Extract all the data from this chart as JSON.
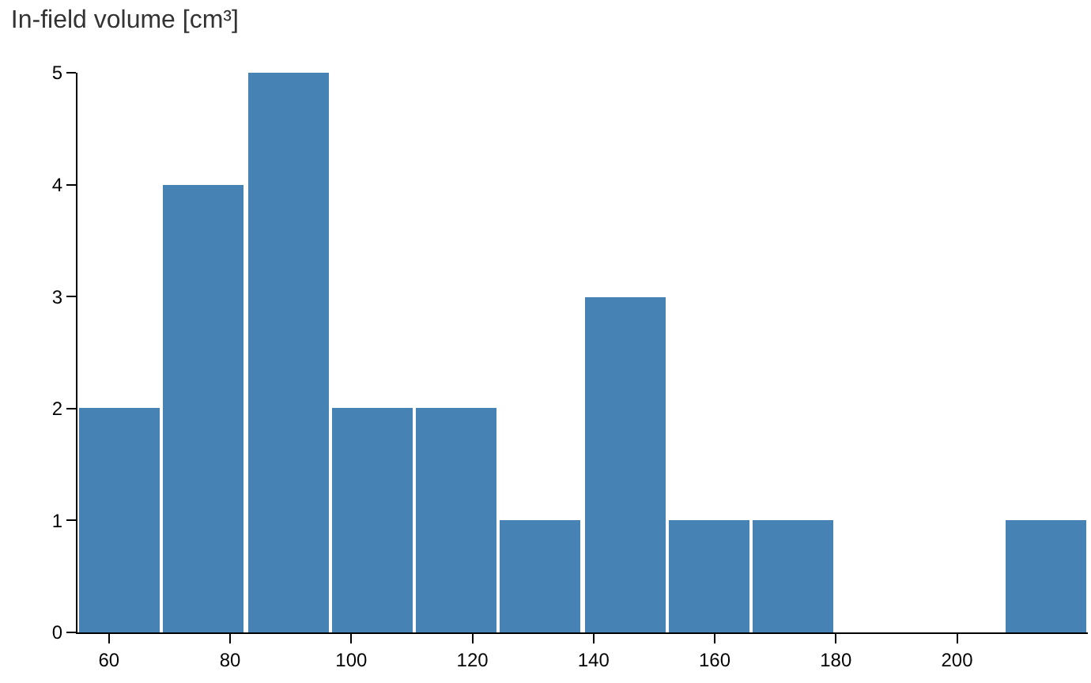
{
  "chart_data": {
    "type": "histogram",
    "title": "In-field volume [cm³]",
    "bins": [
      54.8,
      68.7,
      82.6,
      96.5,
      110.4,
      124.3,
      138.2,
      152.1,
      166.0,
      179.9,
      193.8,
      207.7,
      221.6
    ],
    "values": [
      2,
      4,
      5,
      2,
      2,
      1,
      3,
      1,
      1,
      0,
      0,
      1
    ],
    "color": "#4682b4",
    "xlim": [
      54.8,
      221.6
    ],
    "xticks": [
      60,
      80,
      100,
      120,
      140,
      160,
      180,
      200
    ],
    "ylim": [
      0,
      5
    ],
    "yticks": [
      0,
      1,
      2,
      3,
      4,
      5
    ],
    "tick_labels": "xy"
  }
}
